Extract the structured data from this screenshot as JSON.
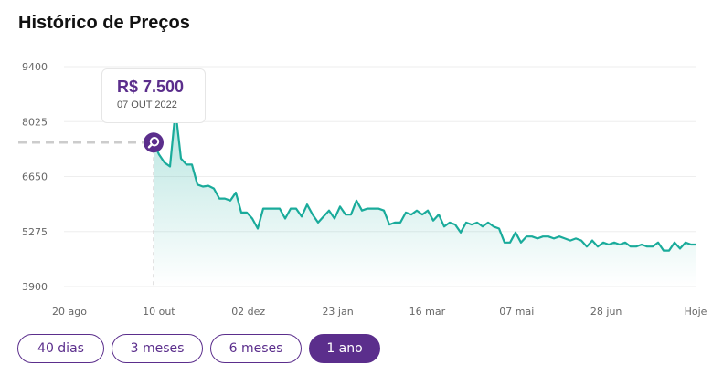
{
  "header": {
    "title": "Histórico de Preços"
  },
  "tooltip": {
    "price": "R$ 7.500",
    "date": "07 OUT 2022"
  },
  "ranges": [
    {
      "label": "40 dias",
      "active": false
    },
    {
      "label": "3 meses",
      "active": false
    },
    {
      "label": "6 meses",
      "active": false
    },
    {
      "label": "1 ano",
      "active": true
    }
  ],
  "colors": {
    "line": "#1aab9b",
    "accent": "#5b2e8c",
    "grid": "#eeeeee"
  },
  "chart_data": {
    "type": "line",
    "title": "Histórico de Preços",
    "xlabel": "",
    "ylabel": "",
    "ylim": [
      3900,
      9400
    ],
    "yticks": [
      "9400",
      "8025",
      "6650",
      "5275",
      "3900"
    ],
    "xticks": [
      "20 ago",
      "10 out",
      "02 dez",
      "23 jan",
      "16 mar",
      "07 mai",
      "28 jun",
      "Hoje"
    ],
    "grid": true,
    "series": [
      {
        "values": [
          7500,
          7200,
          7000,
          6900,
          8300,
          7100,
          6950,
          6950,
          6450,
          6400,
          6420,
          6350,
          6100,
          6100,
          6050,
          6250,
          5750,
          5750,
          5600,
          5350,
          5850,
          5850,
          5850,
          5850,
          5600,
          5850,
          5850,
          5650,
          5950,
          5700,
          5500,
          5650,
          5800,
          5600,
          5900,
          5700,
          5700,
          6050,
          5800,
          5850,
          5850,
          5850,
          5800,
          5450,
          5500,
          5500,
          5750,
          5700,
          5800,
          5700,
          5800,
          5550,
          5700,
          5400,
          5500,
          5450,
          5250,
          5500,
          5450,
          5500,
          5400,
          5500,
          5400,
          5350,
          5000,
          5000,
          5250,
          5000,
          5150,
          5150,
          5100,
          5150,
          5150,
          5100,
          5150,
          5100,
          5050,
          5100,
          5050,
          4900,
          5050,
          4900,
          5000,
          4950,
          5000,
          4950,
          5000,
          4900,
          4900,
          4950,
          4900,
          4900,
          5000,
          4800,
          4800,
          5000,
          4850,
          5000,
          4950,
          4950
        ]
      }
    ],
    "marker": {
      "value": 7500,
      "price": "R$ 7.500",
      "date": "07 OUT 2022"
    }
  }
}
